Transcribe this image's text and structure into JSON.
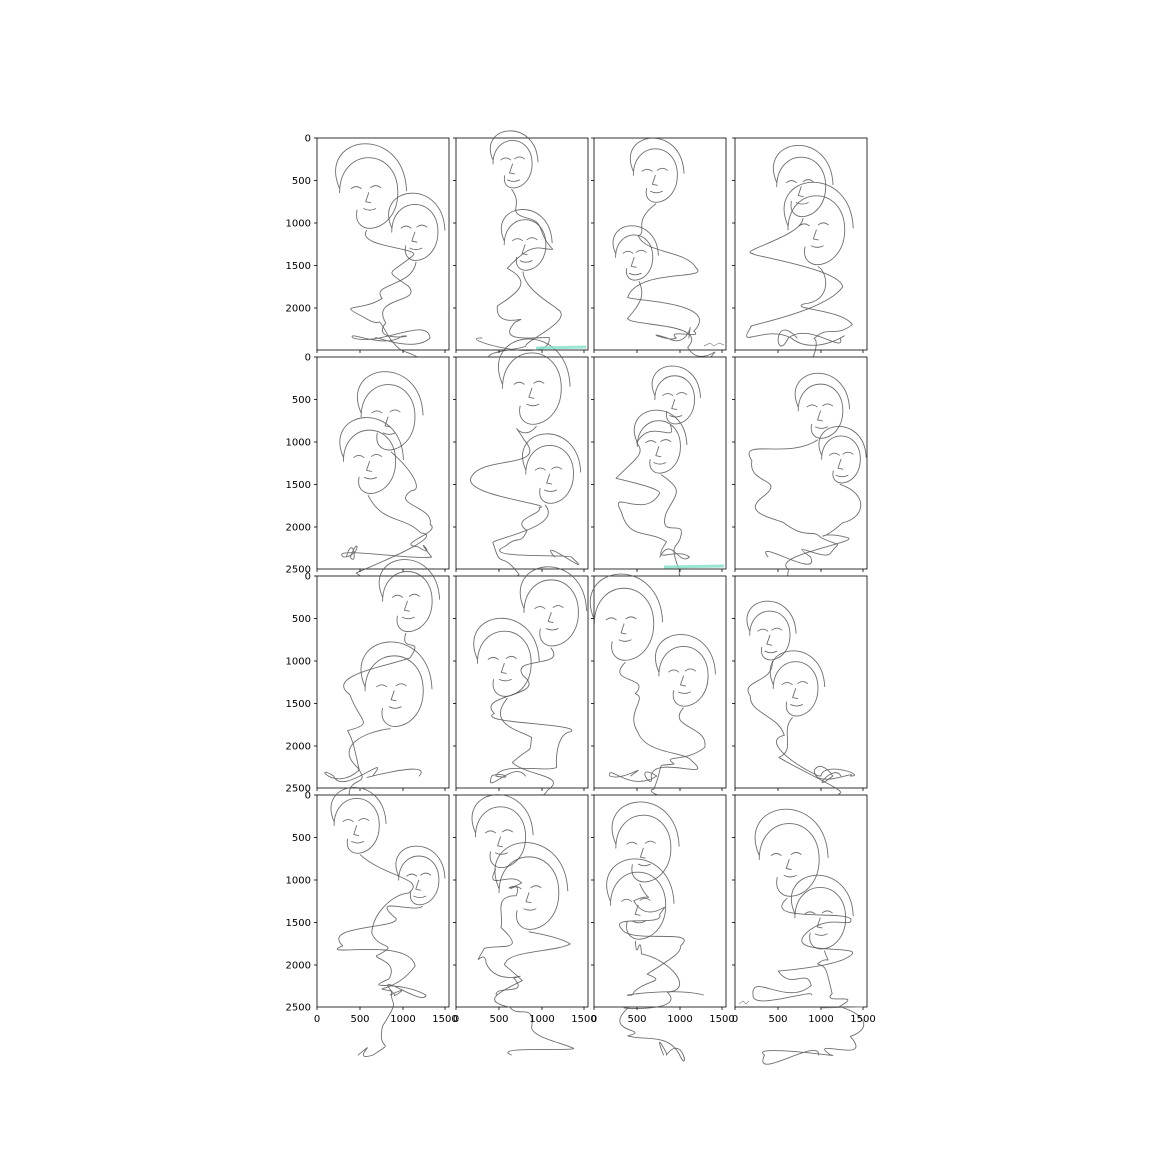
{
  "figure": {
    "rows": 4,
    "cols": 4,
    "x_ticks": [
      "0",
      "500",
      "1000",
      "1500"
    ],
    "y_ticks_first_row": [
      "0",
      "500",
      "1000",
      "1500",
      "2000"
    ],
    "y_ticks_middle_rows": [
      "0",
      "500",
      "1000",
      "1500",
      "2000",
      "2500"
    ],
    "y_ticks_last_row": [
      "0",
      "500",
      "1000",
      "1500",
      "2000",
      "2500"
    ],
    "subject": "continuous line portrait sketches",
    "colors": {
      "line": "#555555",
      "frame": "#000000",
      "tint": "#7fe0c8"
    }
  }
}
